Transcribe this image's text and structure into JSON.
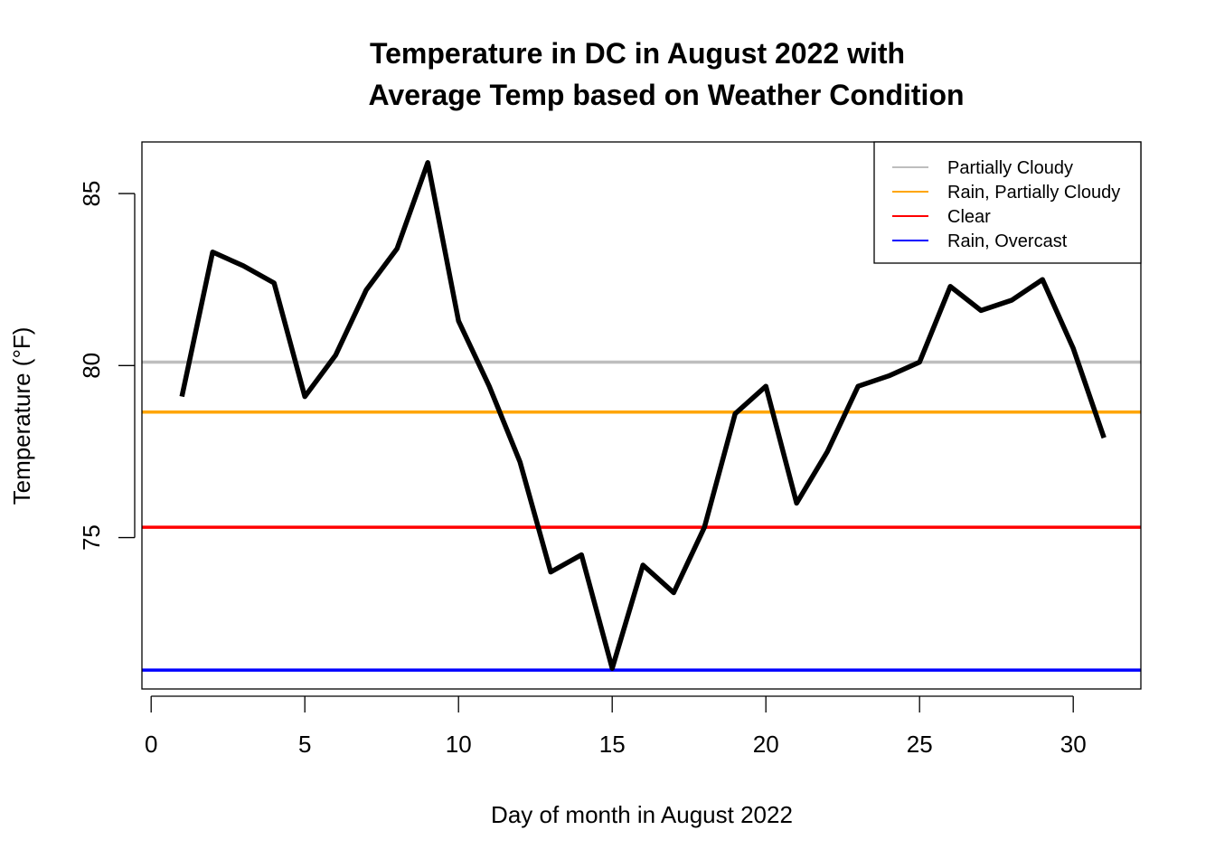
{
  "chart_data": {
    "type": "line",
    "title_line1": "Temperature in DC in August 2022 with",
    "title_line2": "Average Temp based on Weather Condition",
    "xlabel": "Day of month in August 2022",
    "ylabel": "Temperature (°F)",
    "xlim": [
      -0.3,
      32.2
    ],
    "ylim": [
      70.6,
      86.5
    ],
    "x_ticks": [
      0,
      5,
      10,
      15,
      20,
      25,
      30
    ],
    "y_ticks": [
      75,
      80,
      85
    ],
    "series": [
      {
        "color": "#000000",
        "x": [
          1,
          2,
          3,
          4,
          5,
          6,
          7,
          8,
          9,
          10,
          11,
          12,
          13,
          14,
          15,
          16,
          17,
          18,
          19,
          20,
          21,
          22,
          23,
          24,
          25,
          26,
          27,
          28,
          29,
          30,
          31
        ],
        "values": [
          79.1,
          83.3,
          82.9,
          82.4,
          79.1,
          80.3,
          82.2,
          83.4,
          85.9,
          81.3,
          79.4,
          77.2,
          74.0,
          74.5,
          71.2,
          74.2,
          73.4,
          75.3,
          78.6,
          79.4,
          76.0,
          77.5,
          79.4,
          79.7,
          80.1,
          82.3,
          81.6,
          81.9,
          82.5,
          80.5,
          77.9
        ]
      }
    ],
    "reference_lines": [
      {
        "name": "Partially Cloudy",
        "value": 80.1,
        "color": "#bebebe"
      },
      {
        "name": "Rain, Partially Cloudy",
        "value": 78.65,
        "color": "#ffa500"
      },
      {
        "name": "Clear",
        "value": 75.3,
        "color": "#ff0000"
      },
      {
        "name": "Rain, Overcast",
        "value": 71.15,
        "color": "#0000ff"
      }
    ],
    "legend_position": "top-right",
    "grid": false
  }
}
